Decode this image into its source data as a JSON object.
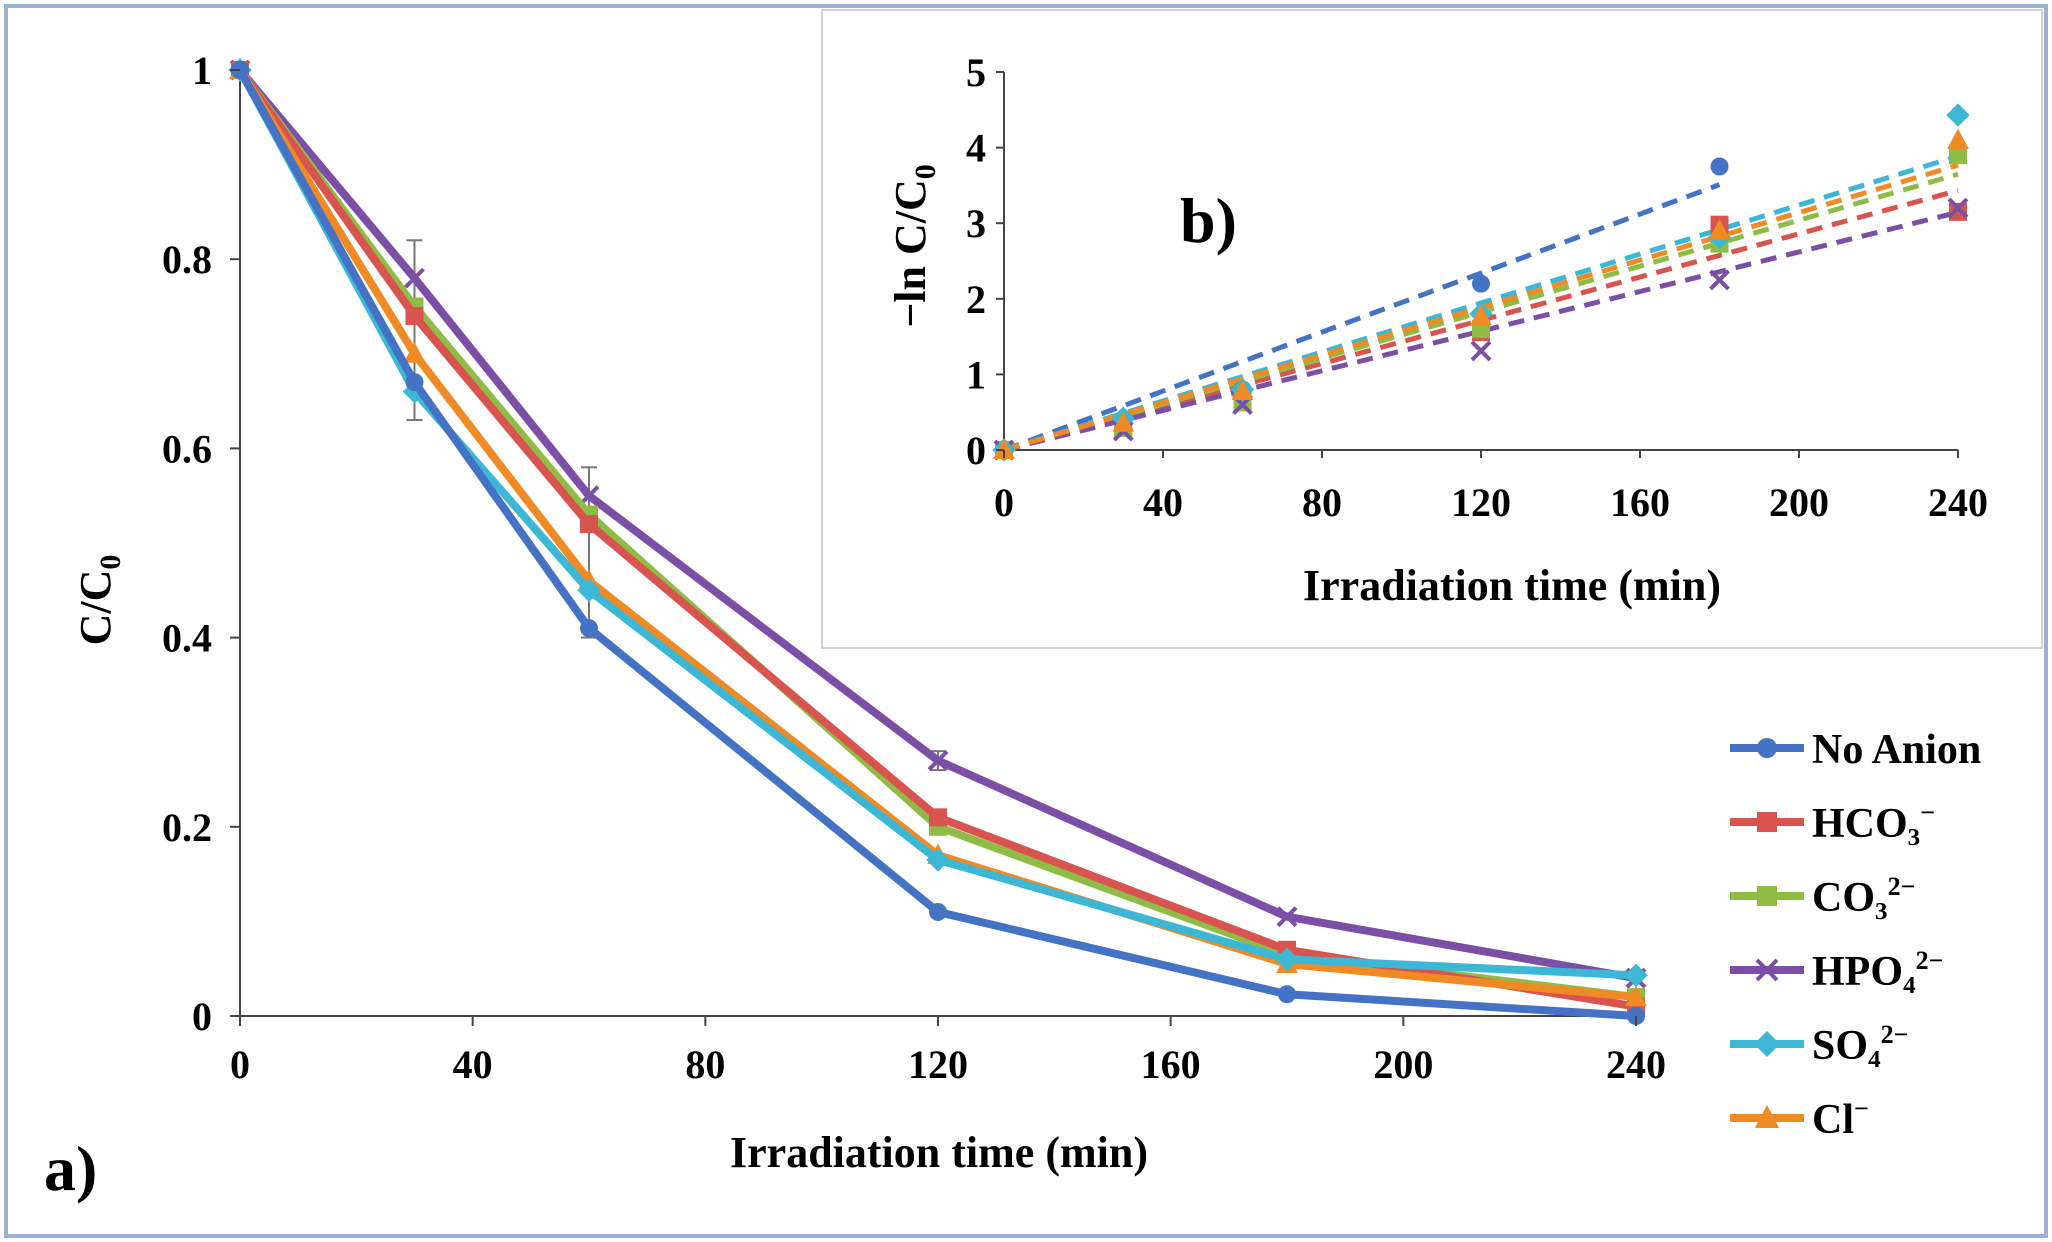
{
  "colors": {
    "frame": "#9ab0d6",
    "axis": "#555555",
    "no_anion": "#4472c4",
    "hco3": "#d9534f",
    "co3": "#8fbc45",
    "hpo4": "#7b4fa6",
    "so4": "#3cb7d6",
    "cl": "#f08a24"
  },
  "chart_data": [
    {
      "id": "panel-a",
      "type": "line",
      "panel_label": "a)",
      "xlabel": "Irradiation time (min)",
      "ylabel_main": "C/C",
      "ylabel_sub": "0",
      "xlim": [
        0,
        240
      ],
      "ylim": [
        0,
        1
      ],
      "x_ticks": [
        "0",
        "40",
        "80",
        "120",
        "160",
        "200",
        "240"
      ],
      "x_tick_values": [
        0,
        40,
        80,
        120,
        160,
        200,
        240
      ],
      "y_ticks": [
        "0",
        "0.2",
        "0.4",
        "0.6",
        "0.8",
        "1"
      ],
      "y_tick_values": [
        0,
        0.2,
        0.4,
        0.6,
        0.8,
        1
      ],
      "legend_position": "right",
      "x": [
        0,
        30,
        60,
        120,
        180,
        240
      ],
      "series": [
        {
          "name": "No Anion",
          "legend_main": "No Anion",
          "legend_sup": "",
          "marker": "circle",
          "color_key": "no_anion",
          "values": [
            1,
            0.67,
            0.41,
            0.11,
            0.023,
            0.0
          ]
        },
        {
          "name": "HCO3−",
          "legend_main": "HCO₃",
          "legend_sup": "−",
          "marker": "square",
          "color_key": "hco3",
          "values": [
            1,
            0.74,
            0.52,
            0.21,
            0.07,
            0.01
          ]
        },
        {
          "name": "CO32−",
          "legend_main": "CO₃",
          "legend_sup": "2−",
          "marker": "square",
          "color_key": "co3",
          "values": [
            1,
            0.75,
            0.53,
            0.2,
            0.065,
            0.02
          ]
        },
        {
          "name": "HPO42−",
          "legend_main": "HPO₄",
          "legend_sup": "2−",
          "marker": "x",
          "color_key": "hpo4",
          "values": [
            1,
            0.78,
            0.55,
            0.27,
            0.105,
            0.04
          ]
        },
        {
          "name": "SO42−",
          "legend_main": "SO₄",
          "legend_sup": "2−",
          "marker": "diamond",
          "color_key": "so4",
          "values": [
            1,
            0.66,
            0.45,
            0.165,
            0.06,
            0.043
          ]
        },
        {
          "name": "Cl−",
          "legend_main": "Cl",
          "legend_sup": "−",
          "marker": "triangle",
          "color_key": "cl",
          "values": [
            1,
            0.7,
            0.46,
            0.17,
            0.055,
            0.02
          ]
        }
      ],
      "error_bars": [
        {
          "x": 30,
          "low": 0.63,
          "high": 0.82
        },
        {
          "x": 60,
          "low": 0.4,
          "high": 0.58
        },
        {
          "x": 120,
          "low": 0.26,
          "high": 0.28
        }
      ]
    },
    {
      "id": "panel-b",
      "type": "scatter",
      "panel_label": "b)",
      "xlabel": "Irradiation time (min)",
      "ylabel_main": "−ln C/C",
      "ylabel_sub": "0",
      "xlim": [
        0,
        240
      ],
      "ylim": [
        0,
        5
      ],
      "x_ticks": [
        "0",
        "40",
        "80",
        "120",
        "160",
        "200",
        "240"
      ],
      "x_tick_values": [
        0,
        40,
        80,
        120,
        160,
        200,
        240
      ],
      "y_ticks": [
        "0",
        "1",
        "2",
        "3",
        "4",
        "5"
      ],
      "y_tick_values": [
        0,
        1,
        2,
        3,
        4,
        5
      ],
      "series": [
        {
          "name": "No Anion",
          "marker": "circle",
          "color_key": "no_anion",
          "x": [
            0,
            60,
            120,
            180
          ],
          "values": [
            0,
            0.8,
            2.2,
            3.75
          ],
          "fit_slope": 0.0195
        },
        {
          "name": "HCO3−",
          "marker": "square",
          "color_key": "hco3",
          "x": [
            0,
            30,
            60,
            120,
            180,
            240
          ],
          "values": [
            0,
            0.3,
            0.65,
            1.56,
            2.98,
            3.15
          ],
          "fit_slope": 0.0143
        },
        {
          "name": "CO32−",
          "marker": "square",
          "color_key": "co3",
          "x": [
            0,
            30,
            60,
            120,
            180,
            240
          ],
          "values": [
            0,
            0.29,
            0.63,
            1.6,
            2.73,
            3.9
          ],
          "fit_slope": 0.0152
        },
        {
          "name": "HPO42−",
          "marker": "x",
          "color_key": "hpo4",
          "x": [
            0,
            30,
            60,
            120,
            180,
            240
          ],
          "values": [
            0,
            0.25,
            0.6,
            1.31,
            2.25,
            3.2
          ],
          "fit_slope": 0.0131
        },
        {
          "name": "SO42−",
          "marker": "diamond",
          "color_key": "so4",
          "x": [
            0,
            30,
            60,
            120,
            180,
            240
          ],
          "values": [
            0,
            0.42,
            0.8,
            1.8,
            2.81,
            4.43
          ],
          "fit_slope": 0.0162
        },
        {
          "name": "Cl−",
          "marker": "triangle",
          "color_key": "cl",
          "x": [
            0,
            30,
            60,
            120,
            180,
            240
          ],
          "values": [
            0,
            0.36,
            0.78,
            1.77,
            2.9,
            4.1
          ],
          "fit_slope": 0.0157
        }
      ]
    }
  ]
}
